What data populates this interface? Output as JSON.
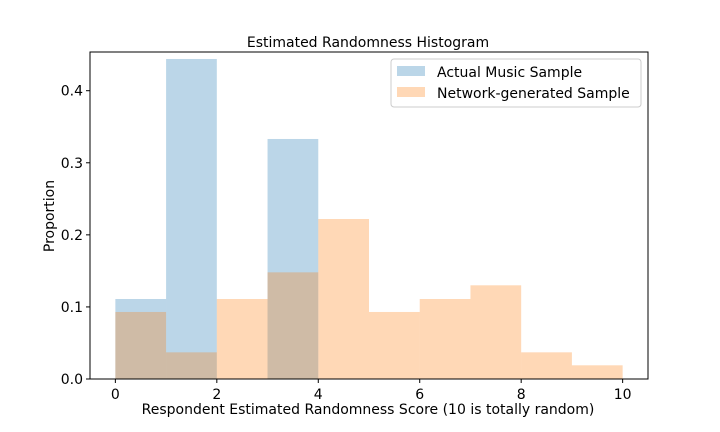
{
  "chart_data": {
    "type": "bar",
    "title": "Estimated Randomness Histogram",
    "xlabel": "Respondent Estimated Randomness Score (10 is totally random)",
    "ylabel": "Proportion",
    "xlim": [
      -0.5,
      10.5
    ],
    "ylim": [
      0,
      0.4537
    ],
    "xticks": [
      0,
      2,
      4,
      6,
      8,
      10
    ],
    "yticks": [
      0.0,
      0.1,
      0.2,
      0.3,
      0.4
    ],
    "ytick_labels": [
      "0.0",
      "0.1",
      "0.2",
      "0.3",
      "0.4"
    ],
    "bin_edges": [
      0,
      1,
      2,
      3,
      4,
      5,
      6,
      7,
      8,
      9,
      10
    ],
    "legend_position": "top-right",
    "series": [
      {
        "name": "Actual Music Sample",
        "color": "#1f77b4",
        "opacity": 0.3,
        "values": [
          0.111,
          0.444,
          0.0,
          0.333,
          0.0,
          0.0,
          0.0,
          0.0,
          0.0,
          0.0
        ]
      },
      {
        "name": "Network-generated Sample",
        "color": "#ff7f0e",
        "opacity": 0.3,
        "values": [
          0.093,
          0.037,
          0.111,
          0.148,
          0.222,
          0.093,
          0.111,
          0.13,
          0.037,
          0.019
        ]
      }
    ]
  }
}
